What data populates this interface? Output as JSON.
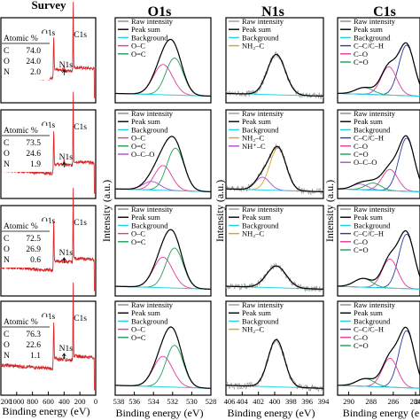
{
  "figure": {
    "columns": [
      {
        "title": "Survey",
        "xlabel": "Binding energy (eV)",
        "xticks": [
          "1200",
          "1000",
          "800",
          "600",
          "400",
          "200",
          "0"
        ],
        "peak_labels": [
          "O1s",
          "C1s",
          "N1s"
        ]
      },
      {
        "title": "O1s",
        "xlabel": "Binding energy (eV)",
        "ylabel": "Intensity (a.u.)",
        "xticks": [
          "538",
          "536",
          "534",
          "532",
          "530",
          "528"
        ]
      },
      {
        "title": "N1s",
        "xlabel": "Binding energy (eV)",
        "ylabel": "Intensity (a.u.)",
        "xticks": [
          "406",
          "404",
          "402",
          "400",
          "398",
          "396",
          "394"
        ]
      },
      {
        "title": "C1s",
        "xlabel": "Binding energy (e",
        "ylabel": "Intensity (a.u.)",
        "xticks": [
          "290",
          "288",
          "286",
          "284",
          "28"
        ]
      }
    ]
  },
  "chart_data": [
    {
      "type": "table",
      "title": "Atomic %",
      "samples": [
        {
          "rows": [
            {
              "element": "C",
              "value": "74.0"
            },
            {
              "element": "O",
              "value": "24.0"
            },
            {
              "element": "N",
              "value": "2.0"
            }
          ]
        },
        {
          "rows": [
            {
              "element": "C",
              "value": "73.5"
            },
            {
              "element": "O",
              "value": "24.6"
            },
            {
              "element": "N",
              "value": "1.9"
            }
          ]
        },
        {
          "rows": [
            {
              "element": "C",
              "value": "72.5"
            },
            {
              "element": "O",
              "value": "26.9"
            },
            {
              "element": "N",
              "value": "0.6"
            }
          ]
        },
        {
          "rows": [
            {
              "element": "C",
              "value": "76.3"
            },
            {
              "element": "O",
              "value": "22.6"
            },
            {
              "element": "N",
              "value": "1.1"
            }
          ]
        }
      ]
    },
    {
      "type": "line",
      "panel": "Survey",
      "xlim": [
        1200,
        0
      ],
      "survey_peaks_eV": {
        "O1s": 532,
        "N1s": 400,
        "C1s": 285
      },
      "peak_heights": [
        {
          "O1s": 0.55,
          "N1s": 0.08,
          "C1s": 1.0
        },
        {
          "O1s": 0.55,
          "N1s": 0.08,
          "C1s": 1.0
        },
        {
          "O1s": 0.6,
          "N1s": 0.05,
          "C1s": 1.0
        },
        {
          "O1s": 0.55,
          "N1s": 0.06,
          "C1s": 1.0
        }
      ],
      "color": "#d62728"
    },
    {
      "type": "line",
      "panel": "O1s",
      "xlim": [
        538,
        528
      ],
      "series_colors": {
        "raw": "#888888",
        "sum": "#000000",
        "background": "#22d3e6",
        "O-C": "#e0399a",
        "O=C": "#1f9e57",
        "O-C-O": "#b04bc9"
      },
      "rows": [
        {
          "legend": [
            "Raw intensity",
            "Peak sum",
            "Background",
            "O–C",
            "O=C"
          ],
          "components": [
            {
              "name": "O–C",
              "center": 533.0,
              "height": 0.45,
              "width": 1.0
            },
            {
              "name": "O=C",
              "center": 531.8,
              "height": 0.55,
              "width": 0.9
            }
          ]
        },
        {
          "legend": [
            "Raw intensity",
            "Peak sum",
            "Background",
            "O–C",
            "O=C",
            "O–C–O"
          ],
          "components": [
            {
              "name": "O–C",
              "center": 533.0,
              "height": 0.35,
              "width": 0.9
            },
            {
              "name": "O=C",
              "center": 531.7,
              "height": 0.6,
              "width": 0.9
            },
            {
              "name": "O–C–O",
              "center": 534.2,
              "height": 0.12,
              "width": 0.9
            }
          ]
        },
        {
          "legend": [
            "Raw intensity",
            "Peak sum",
            "Background",
            "O–C",
            "O=C"
          ],
          "components": [
            {
              "name": "O–C",
              "center": 533.0,
              "height": 0.42,
              "width": 1.0
            },
            {
              "name": "O=C",
              "center": 531.8,
              "height": 0.55,
              "width": 0.9
            }
          ]
        },
        {
          "legend": [
            "Raw intensity",
            "Peak sum",
            "Background",
            "O–C",
            "O=C"
          ],
          "components": [
            {
              "name": "O–C",
              "center": 533.0,
              "height": 0.4,
              "width": 1.0
            },
            {
              "name": "O=C",
              "center": 531.8,
              "height": 0.55,
              "width": 0.9
            }
          ]
        }
      ]
    },
    {
      "type": "line",
      "panel": "N1s",
      "xlim": [
        406,
        394
      ],
      "series_colors": {
        "raw": "#999999",
        "sum": "#000000",
        "background": "#22d3e6",
        "NH2-C": "#e0a020",
        "NH+-C": "#b04bc9"
      },
      "rows": [
        {
          "legend": [
            "Raw intensity",
            "Peak sum",
            "Background",
            "NH₂–C"
          ],
          "components": [
            {
              "name": "NH₂–C",
              "center": 399.8,
              "height": 0.6,
              "width": 1.1
            }
          ]
        },
        {
          "legend": [
            "Raw intensity",
            "Peak sum",
            "Background",
            "NH₂–C",
            "NH⁺–C"
          ],
          "components": [
            {
              "name": "NH₂–C",
              "center": 399.6,
              "height": 0.6,
              "width": 1.0
            },
            {
              "name": "NH⁺–C",
              "center": 401.5,
              "height": 0.18,
              "width": 0.9
            }
          ]
        },
        {
          "legend": [
            "Raw intensity",
            "Peak sum",
            "Background",
            "NH₂–C"
          ],
          "components": [
            {
              "name": "NH₂–C",
              "center": 399.8,
              "height": 0.3,
              "width": 1.2
            }
          ]
        },
        {
          "legend": [
            "Raw intensity",
            "Peak sum",
            "Background",
            "NH₂–C"
          ],
          "components": [
            {
              "name": "NH₂–C",
              "center": 399.8,
              "height": 0.62,
              "width": 1.0
            }
          ]
        }
      ]
    },
    {
      "type": "line",
      "panel": "C1s",
      "xlim": [
        291,
        283.6
      ],
      "series_colors": {
        "raw": "#888888",
        "sum": "#000000",
        "background": "#22d3e6",
        "C-C/C-H": "#2b3aa8",
        "C-O": "#e0399a",
        "C=O": "#1f9e57",
        "O-C-O": "#b04bc9"
      },
      "rows": [
        {
          "legend": [
            "Raw intensity",
            "Peak sum",
            "Background",
            "C–C/C–H",
            "C–O",
            "C=O"
          ],
          "components": [
            {
              "name": "C–C/C–H",
              "center": 284.8,
              "height": 0.75,
              "width": 0.7
            },
            {
              "name": "C–O",
              "center": 286.4,
              "height": 0.42,
              "width": 0.7
            },
            {
              "name": "C=O",
              "center": 288.6,
              "height": 0.1,
              "width": 0.8
            }
          ]
        },
        {
          "legend": [
            "Raw intensity",
            "Peak sum",
            "Background",
            "C–C/C–H",
            "C–O",
            "C=O",
            "O–C–O"
          ],
          "components": [
            {
              "name": "C–C/C–H",
              "center": 284.8,
              "height": 0.75,
              "width": 0.7
            },
            {
              "name": "C–O",
              "center": 286.3,
              "height": 0.3,
              "width": 0.7
            },
            {
              "name": "C=O",
              "center": 287.8,
              "height": 0.1,
              "width": 0.7
            },
            {
              "name": "O–C–O",
              "center": 289.0,
              "height": 0.08,
              "width": 0.7
            }
          ]
        },
        {
          "legend": [
            "Raw intensity",
            "Peak sum",
            "Background",
            "C–C/C–H",
            "C–O",
            "C=O"
          ],
          "components": [
            {
              "name": "C–C/C–H",
              "center": 284.8,
              "height": 0.75,
              "width": 0.7
            },
            {
              "name": "C–O",
              "center": 286.3,
              "height": 0.4,
              "width": 0.7
            },
            {
              "name": "C=O",
              "center": 288.7,
              "height": 0.12,
              "width": 0.8
            }
          ]
        },
        {
          "legend": [
            "Raw intensity",
            "Peak sum",
            "Background",
            "C–C/C–H",
            "C–O",
            "C=O"
          ],
          "components": [
            {
              "name": "C–C/C–H",
              "center": 284.8,
              "height": 0.75,
              "width": 0.7
            },
            {
              "name": "C–O",
              "center": 286.3,
              "height": 0.38,
              "width": 0.7
            },
            {
              "name": "C=O",
              "center": 288.5,
              "height": 0.1,
              "width": 0.8
            }
          ]
        }
      ]
    }
  ]
}
